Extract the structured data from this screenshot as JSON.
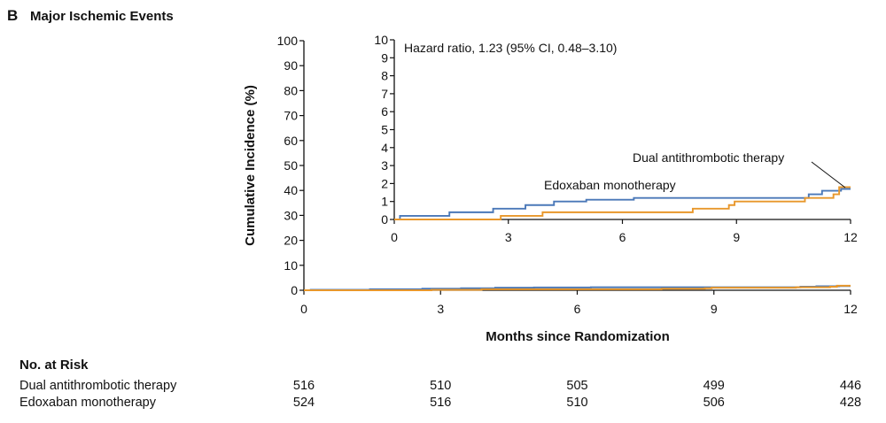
{
  "colors": {
    "dual": "#e8972b",
    "edoxaban": "#4a78b8",
    "axis": "#111111"
  },
  "chart_data": [
    {
      "type": "line",
      "step": true,
      "panel_letter": "B",
      "title": "Major Ischemic Events",
      "xlabel": "Months since Randomization",
      "ylabel": "Cumulative Incidence (%)",
      "xlim": [
        0,
        12
      ],
      "ylim": [
        0,
        100
      ],
      "xticks": [
        0,
        3,
        6,
        9,
        12
      ],
      "yticks": [
        0,
        10,
        20,
        30,
        40,
        50,
        60,
        70,
        80,
        90,
        100
      ],
      "series": [
        {
          "name": "Edoxaban monotherapy",
          "color_key": "edoxaban",
          "x": [
            0,
            0.15,
            1.45,
            2.6,
            3.45,
            4.2,
            5.05,
            6.3,
            10.9,
            11.25,
            11.75,
            12
          ],
          "y": [
            0,
            0.2,
            0.4,
            0.6,
            0.8,
            1.0,
            1.1,
            1.2,
            1.4,
            1.6,
            1.7,
            1.7
          ]
        },
        {
          "name": "Dual antithrombotic therapy",
          "color_key": "dual",
          "x": [
            0,
            2.8,
            3.9,
            7.85,
            8.8,
            8.95,
            10.8,
            11.55,
            11.7,
            12
          ],
          "y": [
            0,
            0.2,
            0.4,
            0.6,
            0.8,
            1.0,
            1.2,
            1.4,
            1.8,
            1.8
          ]
        }
      ]
    },
    {
      "type": "line",
      "step": true,
      "inset": true,
      "xlim": [
        0,
        12
      ],
      "ylim": [
        0,
        10
      ],
      "xticks": [
        0,
        3,
        6,
        9,
        12
      ],
      "yticks": [
        0,
        1,
        2,
        3,
        4,
        5,
        6,
        7,
        8,
        9,
        10
      ],
      "annotation": "Hazard ratio, 1.23 (95% CI, 0.48–3.10)",
      "series_labels": [
        "Dual antithrombotic therapy",
        "Edoxaban monotherapy"
      ]
    }
  ],
  "risk_table": {
    "heading": "No. at Risk",
    "months": [
      0,
      3,
      6,
      9,
      12
    ],
    "rows": [
      {
        "label": "Dual antithrombotic therapy",
        "values": [
          516,
          510,
          505,
          499,
          446
        ]
      },
      {
        "label": "Edoxaban monotherapy",
        "values": [
          524,
          516,
          510,
          506,
          428
        ]
      }
    ]
  }
}
